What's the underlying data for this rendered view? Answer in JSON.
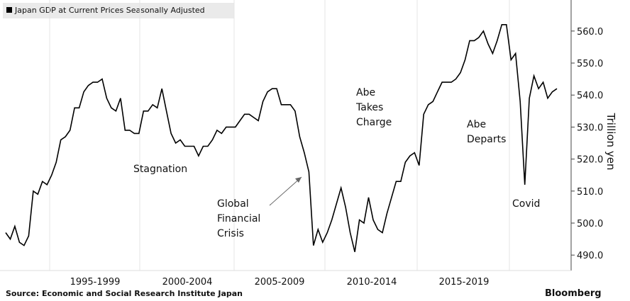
{
  "chart_data": {
    "type": "line",
    "legend": "Japan GDP at Current Prices Seasonally Adjusted",
    "y_axis_label": "Trillion yen",
    "source": "Source:  Economic and Social Research Institute Japan",
    "brand": "Bloomberg",
    "period_labels": [
      "1995-1999",
      "2000-2004",
      "2005-2009",
      "2010-2014",
      "2015-2019"
    ],
    "annotations": [
      [
        "Stagnation"
      ],
      [
        "Global",
        "Financial",
        "Crisis"
      ],
      [
        "Abe",
        "Takes",
        "Charge"
      ],
      [
        "Abe",
        "Departs"
      ],
      [
        "Covid"
      ]
    ],
    "color": "#000000",
    "ylim": [
      483.4,
      569.7
    ],
    "yticks": [
      {
        "value": 490,
        "label": "490.0"
      },
      {
        "value": 500,
        "label": "500.0"
      },
      {
        "value": 510,
        "label": "510.0"
      },
      {
        "value": 520,
        "label": "520.0"
      },
      {
        "value": 530,
        "label": "530.0"
      },
      {
        "value": 540,
        "label": "540.0"
      },
      {
        "value": 550,
        "label": "550.0"
      },
      {
        "value": 560,
        "label": "560.0"
      }
    ],
    "values": [
      497,
      495,
      499,
      494,
      493,
      496,
      510,
      509,
      513,
      512,
      515,
      519,
      526,
      527,
      529,
      536,
      536,
      541,
      543,
      544,
      544,
      545,
      539,
      536,
      535,
      539,
      529,
      529,
      528,
      528,
      535,
      535,
      537,
      536,
      542,
      535,
      528,
      525,
      526,
      524,
      524,
      524,
      521,
      524,
      524,
      526,
      529,
      528,
      530,
      530,
      530,
      532,
      534,
      534,
      533,
      532,
      538,
      541,
      542,
      542,
      537,
      537,
      537,
      535,
      527,
      522,
      516,
      493,
      498,
      494,
      497,
      501,
      506,
      511,
      505,
      497,
      491,
      501,
      500,
      508,
      501,
      498,
      497,
      503,
      508,
      513,
      513,
      519,
      521,
      522,
      518,
      534,
      537,
      538,
      541,
      544,
      544,
      544,
      545,
      547,
      551,
      557,
      557,
      558,
      560,
      556,
      553,
      557,
      562,
      562,
      551,
      553,
      538,
      512,
      539,
      546,
      542,
      544,
      539,
      541,
      542
    ]
  }
}
